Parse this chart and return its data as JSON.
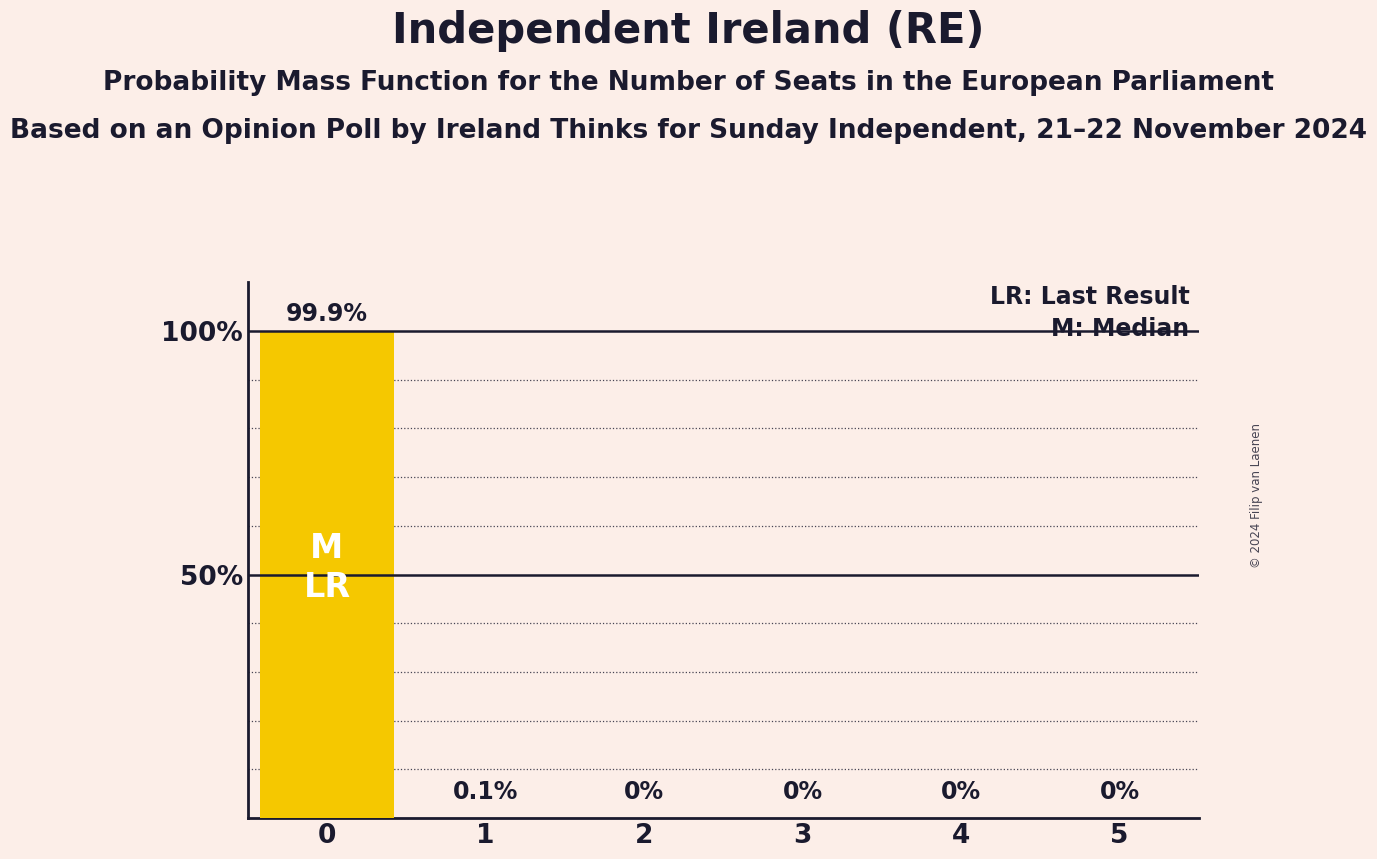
{
  "title": "Independent Ireland (RE)",
  "subtitle": "Probability Mass Function for the Number of Seats in the European Parliament",
  "source": "Based on an Opinion Poll by Ireland Thinks for Sunday Independent, 21–22 November 2024",
  "copyright": "© 2024 Filip van Laenen",
  "categories": [
    0,
    1,
    2,
    3,
    4,
    5
  ],
  "values": [
    99.9,
    0.1,
    0.0,
    0.0,
    0.0,
    0.0
  ],
  "bar_labels": [
    "99.9%",
    "0.1%",
    "0%",
    "0%",
    "0%",
    "0%"
  ],
  "bar_color": "#F5C800",
  "background_color": "#FCEEE8",
  "text_color": "#1a1a2e",
  "bar_text_color": "#FFFFFF",
  "median_seat": 0,
  "last_result_seat": 0,
  "legend_lr": "LR: Last Result",
  "legend_m": "M: Median",
  "ylabel_ticks": [
    0,
    50,
    100
  ],
  "ylabel_labels": [
    "",
    "50%",
    "100%"
  ],
  "ylim": [
    0,
    110
  ],
  "xlim": [
    -0.5,
    5.5
  ],
  "title_fontsize": 30,
  "subtitle_fontsize": 19,
  "source_fontsize": 19,
  "bar_label_fontsize": 17,
  "tick_fontsize": 19,
  "legend_fontsize": 17,
  "dotted_gridlines": [
    10,
    20,
    30,
    40,
    60,
    70,
    80,
    90
  ],
  "solid_gridlines": [
    50,
    100
  ]
}
